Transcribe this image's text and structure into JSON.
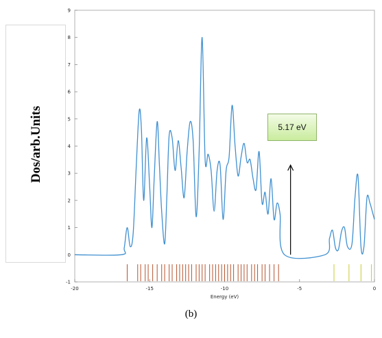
{
  "chart_data": {
    "type": "line",
    "title": "",
    "xlabel": "Energy (eV)",
    "ylabel": "Dos/arb.Units",
    "xlim": [
      -20,
      0
    ],
    "ylim": [
      -1,
      9
    ],
    "x_ticks": [
      -20,
      -15,
      -10,
      -5,
      0
    ],
    "y_ticks": [
      -1,
      0,
      1,
      2,
      3,
      4,
      5,
      6,
      7,
      8,
      9
    ],
    "grid": false,
    "annotation": {
      "label": "5.17 eV",
      "x": -5.6,
      "y_from": 0,
      "y_to": 3.3
    },
    "caption": "(b)",
    "series_color": "#3f8fd0",
    "curve": {
      "x": [
        -20,
        -16.9,
        -16.7,
        -16.5,
        -16.3,
        -16.1,
        -15.9,
        -15.7,
        -15.55,
        -15.4,
        -15.2,
        -15.0,
        -14.85,
        -14.7,
        -14.5,
        -14.35,
        -14.2,
        -14.0,
        -13.85,
        -13.7,
        -13.5,
        -13.3,
        -13.1,
        -12.9,
        -12.7,
        -12.5,
        -12.3,
        -12.1,
        -11.9,
        -11.7,
        -11.5,
        -11.3,
        -11.1,
        -10.9,
        -10.7,
        -10.5,
        -10.3,
        -10.1,
        -9.9,
        -9.7,
        -9.5,
        -9.3,
        -9.1,
        -8.9,
        -8.7,
        -8.5,
        -8.3,
        -8.1,
        -7.9,
        -7.7,
        -7.5,
        -7.3,
        -7.1,
        -6.9,
        -6.7,
        -6.5,
        -6.3,
        -6.0,
        -3.3,
        -3.0,
        -2.8,
        -2.6,
        -2.4,
        -2.2,
        -2.0,
        -1.8,
        -1.5,
        -1.3,
        -1.1,
        -0.9,
        -0.7,
        -0.5,
        -0.3,
        -0.1,
        0
      ],
      "y": [
        0,
        0,
        0.25,
        1.0,
        0.3,
        0.8,
        3.2,
        5.3,
        4.6,
        2.0,
        4.3,
        2.5,
        1.0,
        2.8,
        4.9,
        3.3,
        1.6,
        0.4,
        2.2,
        4.4,
        4.3,
        3.1,
        4.2,
        3.2,
        2.1,
        3.8,
        4.9,
        4.2,
        1.4,
        3.8,
        8.0,
        3.5,
        3.7,
        3.1,
        1.6,
        3.1,
        3.3,
        1.3,
        3.1,
        3.6,
        5.5,
        4.0,
        2.9,
        3.6,
        4.1,
        3.4,
        3.5,
        2.8,
        2.4,
        3.8,
        1.9,
        2.3,
        1.5,
        2.8,
        1.3,
        1.9,
        1.5,
        0,
        0,
        0.6,
        0.9,
        0.25,
        0.2,
        0.85,
        1.0,
        0.3,
        0.4,
        2.1,
        2.9,
        0.3,
        0.3,
        2.1,
        1.9,
        1.5,
        1.3
      ]
    },
    "levels": {
      "values": [
        -16.5,
        -15.8,
        -15.6,
        -15.3,
        -15.1,
        -14.8,
        -14.5,
        -14.2,
        -14.0,
        -13.7,
        -13.5,
        -13.2,
        -13.0,
        -12.8,
        -12.6,
        -12.4,
        -12.2,
        -11.9,
        -11.7,
        -11.5,
        -11.3,
        -11.0,
        -10.8,
        -10.6,
        -10.4,
        -10.2,
        -10.0,
        -9.8,
        -9.6,
        -9.4,
        -9.1,
        -8.9,
        -8.7,
        -8.5,
        -8.2,
        -8.0,
        -7.8,
        -7.5,
        -7.3,
        -7.0,
        -6.7,
        -6.4
      ],
      "conduction": [
        -2.7,
        -1.7,
        -0.9,
        -0.2
      ],
      "valence_color": "#b5522c",
      "conduction_color": "#c8c832"
    }
  }
}
